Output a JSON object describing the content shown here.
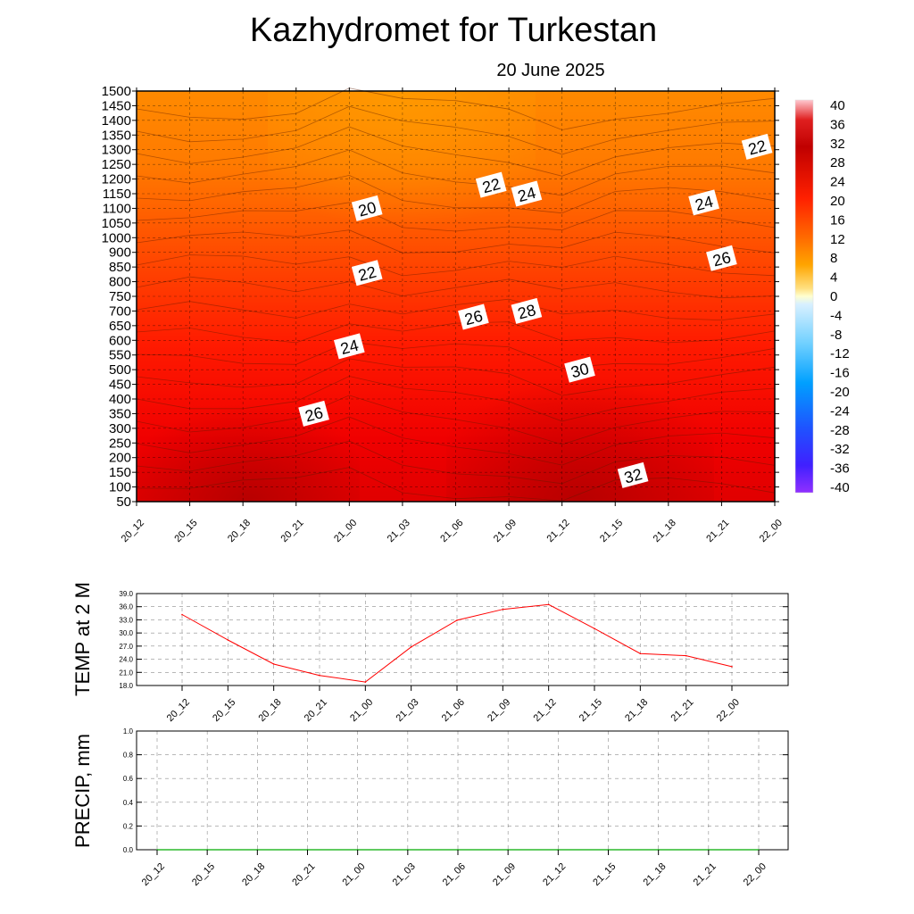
{
  "title": "Kazhydromet  for Turkestan",
  "subtitle": "20 June 2025",
  "chart_data": [
    {
      "type": "heatmap",
      "id": "cross-section",
      "x": [
        "20_12",
        "20_15",
        "20_18",
        "20_21",
        "21_00",
        "21_03",
        "21_06",
        "21_09",
        "21_12",
        "21_15",
        "21_18",
        "21_21",
        "22_00"
      ],
      "y_ticks": [
        50,
        100,
        150,
        200,
        250,
        300,
        350,
        400,
        450,
        500,
        550,
        600,
        650,
        700,
        750,
        800,
        850,
        900,
        1000,
        1050,
        1100,
        1150,
        1200,
        1250,
        1300,
        1350,
        1400,
        1450,
        1500
      ],
      "ylim": [
        50,
        1500
      ],
      "grid": true,
      "colorbar": {
        "ticks": [
          40,
          36,
          32,
          28,
          24,
          20,
          16,
          12,
          8,
          4,
          0,
          -4,
          -8,
          -12,
          -16,
          -20,
          -24,
          -28,
          -32,
          -36,
          -40
        ],
        "range": [
          -40,
          40
        ],
        "placement": "right"
      },
      "contour_labels": [
        {
          "text": "20",
          "x": "21_01",
          "y": 1100
        },
        {
          "text": "22",
          "x": "21_01",
          "y": 830
        },
        {
          "text": "24",
          "x": "21_00",
          "y": 580
        },
        {
          "text": "26",
          "x": "20_22",
          "y": 350
        },
        {
          "text": "22",
          "x": "21_08",
          "y": 1180
        },
        {
          "text": "24",
          "x": "21_10",
          "y": 1150
        },
        {
          "text": "26",
          "x": "21_07",
          "y": 680
        },
        {
          "text": "28",
          "x": "21_10",
          "y": 700
        },
        {
          "text": "30",
          "x": "21_13",
          "y": 500
        },
        {
          "text": "32",
          "x": "21_16",
          "y": 140
        },
        {
          "text": "24",
          "x": "21_20",
          "y": 1120
        },
        {
          "text": "26",
          "x": "21_21",
          "y": 880
        },
        {
          "text": "22",
          "x": "21_23",
          "y": 1310
        }
      ]
    },
    {
      "type": "line",
      "id": "temp-2m",
      "ylabel": "TEMP at 2 M",
      "x": [
        "20_12",
        "20_15",
        "20_18",
        "20_21",
        "21_00",
        "21_03",
        "21_06",
        "21_09",
        "21_12",
        "21_15",
        "21_18",
        "21_21",
        "22_00"
      ],
      "values": [
        34.2,
        28.4,
        22.9,
        20.3,
        18.8,
        26.8,
        32.9,
        35.4,
        36.5,
        31.0,
        25.3,
        24.8,
        22.3
      ],
      "ylim": [
        18.0,
        39.0
      ],
      "y_ticks": [
        "39.0",
        "36.0",
        "33.0",
        "30.0",
        "27.0",
        "24.0",
        "21.0",
        "18.0"
      ],
      "color": "#ff0000",
      "grid": true
    },
    {
      "type": "line",
      "id": "precip",
      "ylabel": "PRECIP, mm",
      "x": [
        "20_12",
        "20_15",
        "20_18",
        "20_21",
        "21_00",
        "21_03",
        "21_06",
        "21_09",
        "21_12",
        "21_15",
        "21_18",
        "21_21",
        "22_00"
      ],
      "values": [
        0,
        0,
        0,
        0,
        0,
        0,
        0,
        0,
        0,
        0,
        0,
        0,
        0
      ],
      "ylim": [
        0.0,
        1.0
      ],
      "y_ticks": [
        "1.0",
        "0.8",
        "0.6",
        "0.4",
        "0.2",
        "0.0"
      ],
      "color": "#00aa00",
      "grid": true
    }
  ]
}
